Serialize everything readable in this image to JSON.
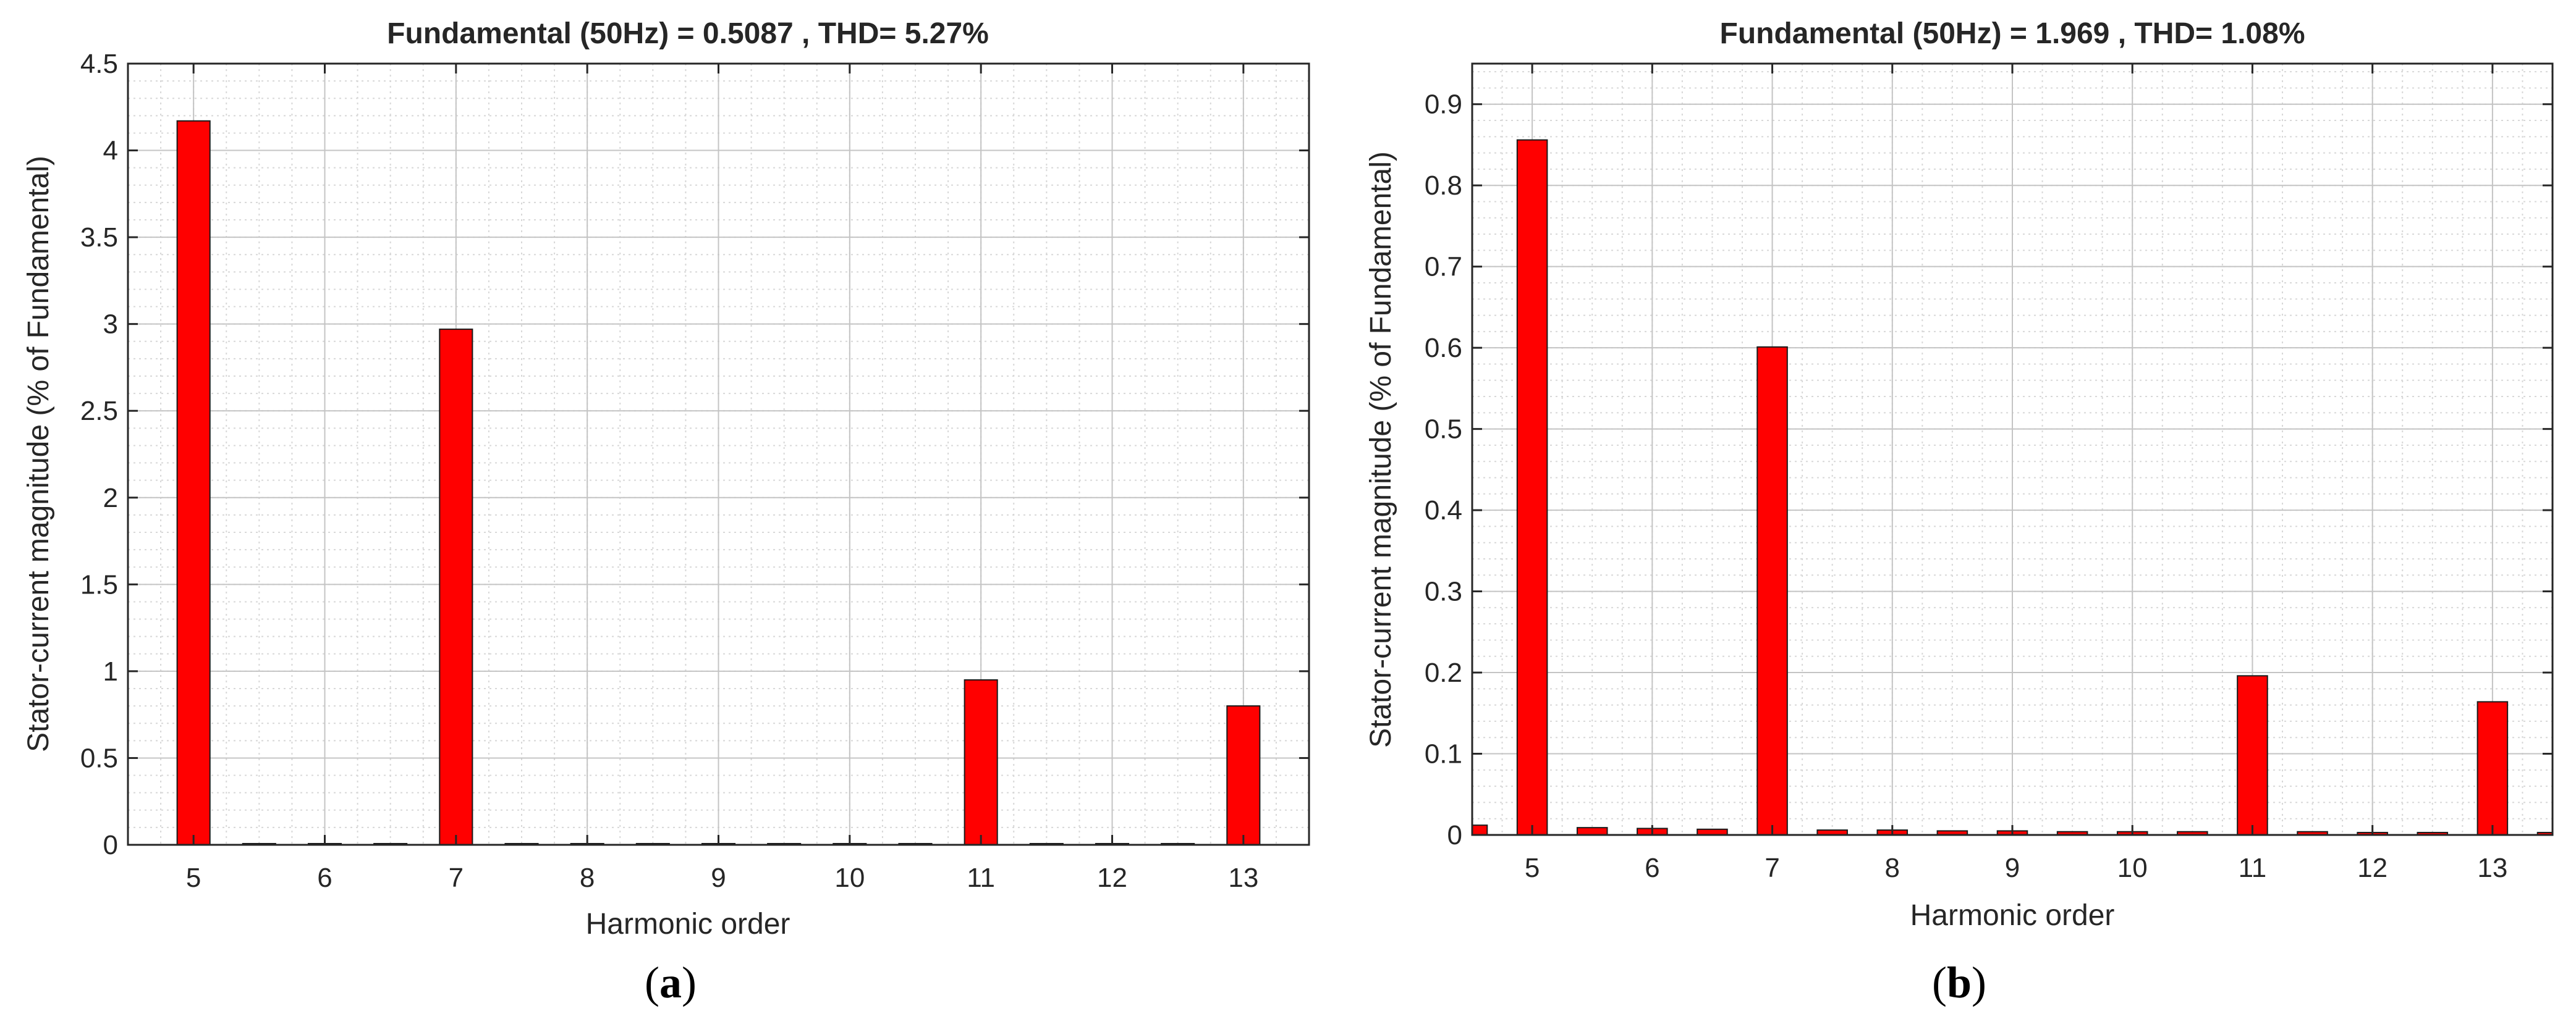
{
  "chart_data": [
    {
      "type": "bar",
      "title": "Fundamental (50Hz) = 0.5087 , THD= 5.27%",
      "xlabel": "Harmonic order",
      "ylabel": "Stator-current magnitude (% of Fundamental)",
      "caption_open": "(",
      "caption_letter": "a",
      "caption_close": ")",
      "xlim": [
        4.5,
        13.5
      ],
      "ylim": [
        0,
        4.5
      ],
      "xticks": [
        5,
        6,
        7,
        8,
        9,
        10,
        11,
        12,
        13
      ],
      "yticks": [
        0,
        0.5,
        1,
        1.5,
        2,
        2.5,
        3,
        3.5,
        4,
        4.5
      ],
      "ytick_labels": [
        "0",
        "0.5",
        "1",
        "1.5",
        "2",
        "2.5",
        "3",
        "3.5",
        "4",
        "4.5"
      ],
      "bar_width": 0.25,
      "bar_color": "#ff0000",
      "x": [
        5,
        5.5,
        6,
        6.5,
        7,
        7.5,
        8,
        8.5,
        9,
        9.5,
        10,
        10.5,
        11,
        11.5,
        12,
        12.5,
        13
      ],
      "values": [
        4.17,
        0.005,
        0.005,
        0.005,
        2.97,
        0.005,
        0.005,
        0.005,
        0.005,
        0.005,
        0.005,
        0.005,
        0.95,
        0.005,
        0.005,
        0.005,
        0.8
      ],
      "grid": true
    },
    {
      "type": "bar",
      "title": "Fundamental (50Hz) = 1.969 , THD= 1.08%",
      "xlabel": "Harmonic order",
      "ylabel": "Stator-current magnitude (% of Fundamental)",
      "caption_open": "(",
      "caption_letter": "b",
      "caption_close": ")",
      "xlim": [
        4.5,
        13.5
      ],
      "ylim": [
        0,
        0.95
      ],
      "xticks": [
        5,
        6,
        7,
        8,
        9,
        10,
        11,
        12,
        13
      ],
      "yticks": [
        0,
        0.1,
        0.2,
        0.3,
        0.4,
        0.5,
        0.6,
        0.7,
        0.8,
        0.9
      ],
      "ytick_labels": [
        "0",
        "0.1",
        "0.2",
        "0.3",
        "0.4",
        "0.5",
        "0.6",
        "0.7",
        "0.8",
        "0.9"
      ],
      "bar_width": 0.25,
      "bar_color": "#ff0000",
      "x": [
        4.5,
        5,
        5.5,
        6,
        6.5,
        7,
        7.5,
        8,
        8.5,
        9,
        9.5,
        10,
        10.5,
        11,
        11.5,
        12,
        12.5,
        13,
        13.5
      ],
      "values": [
        0.012,
        0.856,
        0.009,
        0.008,
        0.007,
        0.601,
        0.006,
        0.006,
        0.005,
        0.005,
        0.004,
        0.004,
        0.004,
        0.196,
        0.004,
        0.003,
        0.003,
        0.164,
        0.003
      ],
      "grid": true
    }
  ]
}
